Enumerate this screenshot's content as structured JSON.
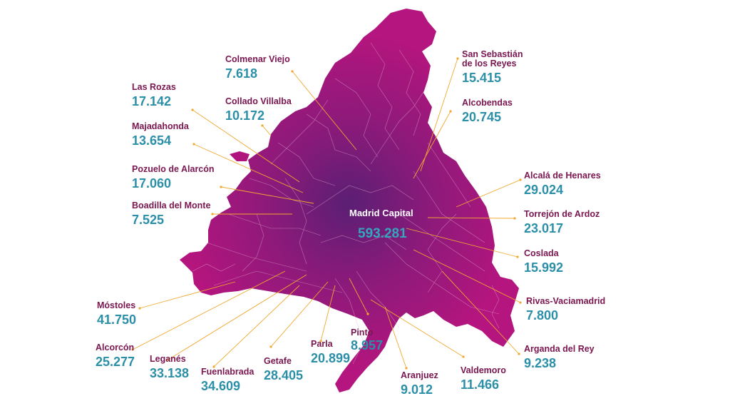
{
  "colors": {
    "map_fill_outer": "#b5157e",
    "map_fill_center": "#5a1f73",
    "border_lines": "#e8b6d6",
    "leader_lines": "#f0a830",
    "label_name": "#7a1650",
    "label_value": "#2b8fa8"
  },
  "capital": {
    "name": "Madrid Capital",
    "value": "593.281"
  },
  "municipalities": [
    {
      "id": "colmenar-viejo",
      "name": "Colmenar Viejo",
      "value": "7.618"
    },
    {
      "id": "san-sebastian",
      "name": "San Sebastián\nde los Reyes",
      "value": "15.415"
    },
    {
      "id": "las-rozas",
      "name": "Las Rozas",
      "value": "17.142"
    },
    {
      "id": "collado-villalba",
      "name": "Collado Villalba",
      "value": "10.172"
    },
    {
      "id": "alcobendas",
      "name": "Alcobendas",
      "value": "20.745"
    },
    {
      "id": "majadahonda",
      "name": "Majadahonda",
      "value": "13.654"
    },
    {
      "id": "pozuelo",
      "name": "Pozuelo de Alarcón",
      "value": "17.060"
    },
    {
      "id": "alcala",
      "name": "Alcalá de Henares",
      "value": "29.024"
    },
    {
      "id": "boadilla",
      "name": "Boadilla del Monte",
      "value": "7.525"
    },
    {
      "id": "torrejon",
      "name": "Torrejón de Ardoz",
      "value": "23.017"
    },
    {
      "id": "coslada",
      "name": "Coslada",
      "value": "15.992"
    },
    {
      "id": "mostoles",
      "name": "Móstoles",
      "value": "41.750"
    },
    {
      "id": "rivas",
      "name": "Rivas-Vaciamadrid",
      "value": "7.800"
    },
    {
      "id": "pinto",
      "name": "Pinto",
      "value": "8.957"
    },
    {
      "id": "alcorcon",
      "name": "Alcorcón",
      "value": "25.277"
    },
    {
      "id": "parla",
      "name": "Parla",
      "value": "20.899"
    },
    {
      "id": "leganes",
      "name": "Leganés",
      "value": "33.138"
    },
    {
      "id": "getafe",
      "name": "Getafe",
      "value": "28.405"
    },
    {
      "id": "arganda",
      "name": "Arganda del Rey",
      "value": "9.238"
    },
    {
      "id": "fuenlabrada",
      "name": "Fuenlabrada",
      "value": "34.609"
    },
    {
      "id": "valdemoro",
      "name": "Valdemoro",
      "value": "11.466"
    },
    {
      "id": "aranjuez",
      "name": "Aranjuez",
      "value": "9.012"
    }
  ]
}
